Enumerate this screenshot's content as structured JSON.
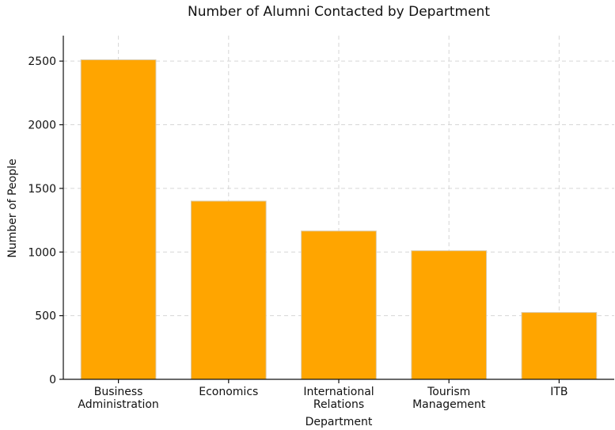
{
  "chart_data": {
    "type": "bar",
    "title": "Number of Alumni Contacted by Department",
    "xlabel": "Department",
    "ylabel": "Number of People",
    "categories": [
      [
        "Business",
        "Administration"
      ],
      [
        "Economics"
      ],
      [
        "International",
        "Relations"
      ],
      [
        "Tourism",
        "Management"
      ],
      [
        "ITB"
      ]
    ],
    "values": [
      2510,
      1400,
      1165,
      1010,
      525
    ],
    "ylim": [
      0,
      2700
    ],
    "yticks": [
      0,
      500,
      1000,
      1500,
      2000,
      2500
    ],
    "grid": true,
    "bar_color": "#ffa500"
  }
}
